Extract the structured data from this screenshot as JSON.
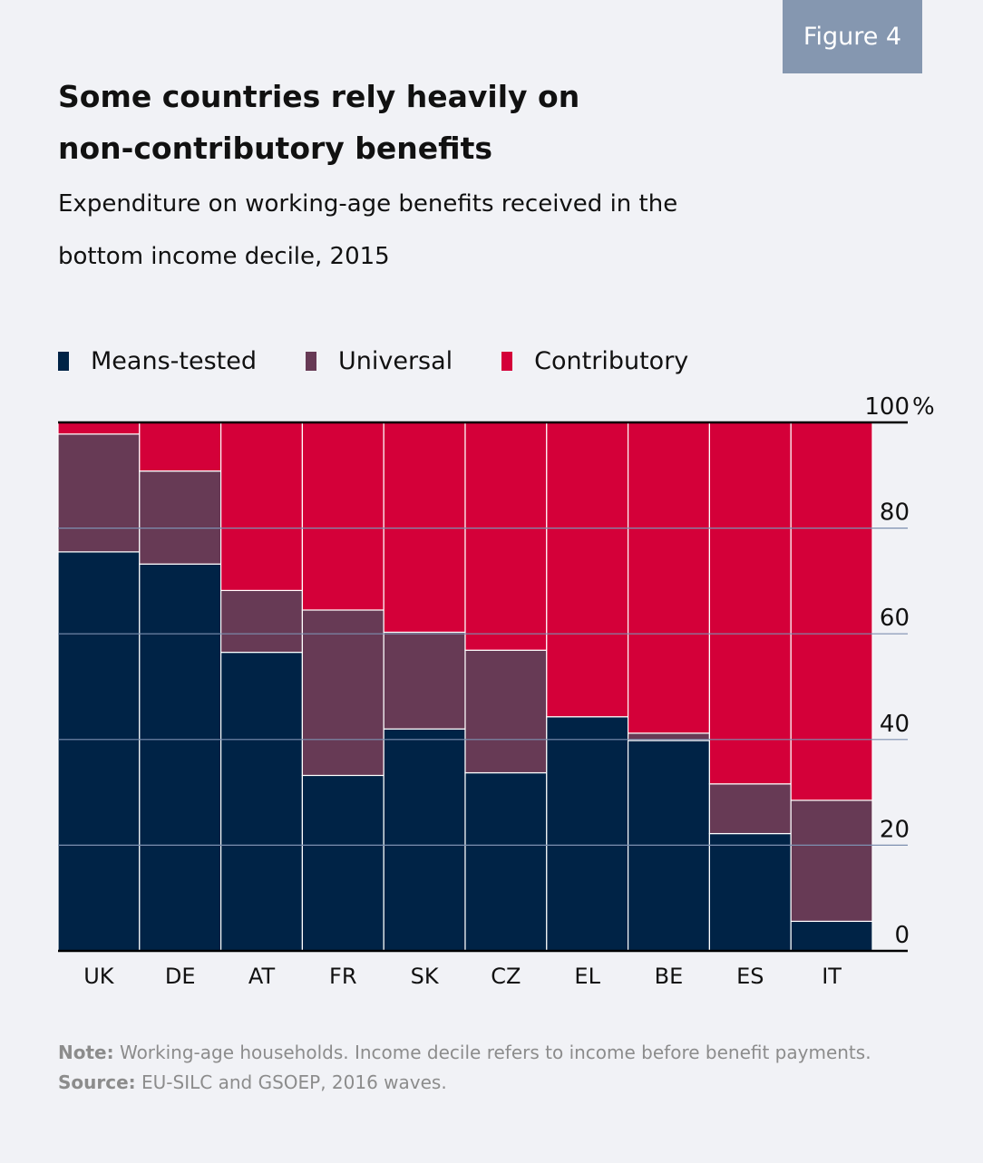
{
  "badge": "Figure 4",
  "title_line1": "Some countries rely heavily on",
  "title_line2": "non-contributory benefits",
  "subtitle_line1": "Expenditure on working-age benefits received in the",
  "subtitle_line2": "bottom income decile, 2015",
  "note_label": "Note:",
  "note_text": " Working-age households. Income decile refers to income before benefit payments.",
  "source_label": "Source:",
  "source_text": " EU-SILC and GSOEP, 2016 waves.",
  "colors": {
    "means_tested": "#002346",
    "universal": "#673a55",
    "contributory": "#d40039",
    "gridline": "#7d8fb0",
    "axis": "#000000"
  },
  "chart_data": {
    "type": "bar",
    "stacked": true,
    "normalized": true,
    "categories": [
      "UK",
      "DE",
      "AT",
      "FR",
      "SK",
      "CZ",
      "EL",
      "BE",
      "ES",
      "IT"
    ],
    "series": [
      {
        "name": "Means-tested",
        "key": "means_tested",
        "values": [
          75.5,
          73.2,
          56.5,
          33.2,
          42.0,
          33.7,
          44.3,
          39.8,
          22.2,
          5.6
        ]
      },
      {
        "name": "Universal",
        "key": "universal",
        "values": [
          22.3,
          17.6,
          11.7,
          31.3,
          18.3,
          23.2,
          0.0,
          1.4,
          9.4,
          22.9
        ]
      },
      {
        "name": "Contributory",
        "key": "contributory",
        "values": [
          2.2,
          9.2,
          31.8,
          35.5,
          39.7,
          43.1,
          55.7,
          58.8,
          68.4,
          71.5
        ]
      }
    ],
    "ylim": [
      0,
      100
    ],
    "yticks": [
      0,
      20,
      40,
      60,
      80,
      100
    ],
    "ytick_labels": [
      "0",
      "20",
      "40",
      "60",
      "80",
      "100"
    ],
    "y_unit": "%",
    "legend_position": "top-left"
  }
}
